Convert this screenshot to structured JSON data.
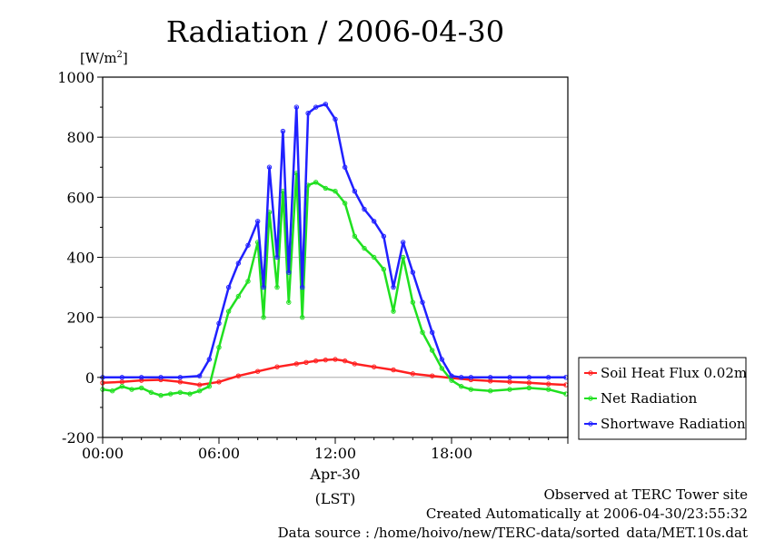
{
  "chart_data": {
    "type": "line",
    "title": "Radiation / 2006-04-30",
    "y_unit_prefix": "[W/m",
    "y_unit_sup": "2",
    "y_unit_suffix": "]",
    "ylim": [
      -200,
      1000
    ],
    "yticks": [
      -200,
      0,
      200,
      400,
      600,
      800,
      1000
    ],
    "ytick_labels": [
      "-200",
      "0",
      "200",
      "400",
      "600",
      "800",
      "1000"
    ],
    "xlim": [
      0,
      24
    ],
    "xticks": [
      0,
      6,
      12,
      18
    ],
    "xtick_labels": [
      "00:00",
      "06:00",
      "12:00",
      "18:00"
    ],
    "x_date_label": "Apr-30",
    "x_tz_label": "(LST)",
    "grid": "horizontal",
    "legend_position": "right",
    "series": [
      {
        "name": "Soil Heat Flux 0.02m",
        "color": "#ff2020",
        "x": [
          0,
          1,
          2,
          3,
          4,
          5,
          6,
          7,
          8,
          9,
          10,
          10.5,
          11,
          11.5,
          12,
          12.5,
          13,
          14,
          15,
          16,
          17,
          18,
          19,
          20,
          21,
          22,
          23,
          23.9
        ],
        "y": [
          -18,
          -15,
          -10,
          -8,
          -15,
          -25,
          -15,
          5,
          20,
          35,
          45,
          50,
          55,
          58,
          60,
          55,
          45,
          35,
          25,
          12,
          5,
          -2,
          -8,
          -12,
          -15,
          -18,
          -22,
          -25
        ]
      },
      {
        "name": "Net Radiation",
        "color": "#20e020",
        "x": [
          0,
          0.5,
          1,
          1.5,
          2,
          2.5,
          3,
          3.5,
          4,
          4.5,
          5,
          5.5,
          6,
          6.5,
          7,
          7.5,
          8,
          8.3,
          8.6,
          9,
          9.3,
          9.6,
          10,
          10.3,
          10.6,
          11,
          11.5,
          12,
          12.5,
          13,
          13.5,
          14,
          14.5,
          15,
          15.5,
          16,
          16.5,
          17,
          17.5,
          18,
          18.5,
          19,
          20,
          21,
          22,
          23,
          23.9
        ],
        "y": [
          -40,
          -45,
          -30,
          -40,
          -35,
          -50,
          -60,
          -55,
          -50,
          -55,
          -45,
          -30,
          100,
          220,
          270,
          320,
          450,
          200,
          550,
          300,
          620,
          250,
          680,
          200,
          640,
          650,
          630,
          620,
          580,
          470,
          430,
          400,
          360,
          220,
          400,
          250,
          150,
          90,
          30,
          -10,
          -30,
          -40,
          -45,
          -40,
          -35,
          -40,
          -55
        ]
      },
      {
        "name": "Shortwave Radiation",
        "color": "#2020ff",
        "x": [
          0,
          1,
          2,
          3,
          4,
          5,
          5.5,
          6,
          6.5,
          7,
          7.5,
          8,
          8.3,
          8.6,
          9,
          9.3,
          9.6,
          10,
          10.3,
          10.6,
          11,
          11.5,
          12,
          12.5,
          13,
          13.5,
          14,
          14.5,
          15,
          15.5,
          16,
          16.5,
          17,
          17.5,
          18,
          18.5,
          19,
          20,
          21,
          22,
          23,
          23.9
        ],
        "y": [
          0,
          0,
          0,
          0,
          0,
          5,
          60,
          180,
          300,
          380,
          440,
          520,
          300,
          700,
          400,
          820,
          350,
          900,
          300,
          880,
          900,
          910,
          860,
          700,
          620,
          560,
          520,
          470,
          300,
          450,
          350,
          250,
          150,
          60,
          5,
          0,
          0,
          0,
          0,
          0,
          0,
          0
        ]
      }
    ]
  },
  "footer": {
    "line1": "Observed at TERC Tower site",
    "line2": "Created Automatically at 2006-04-30/23:55:32",
    "line3": "Data source : /home/hoivo/new/TERC-data/sorted_data/MET.10s.dat"
  }
}
